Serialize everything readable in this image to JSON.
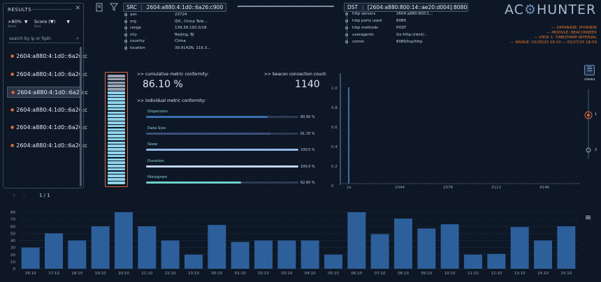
{
  "results": {
    "title": "RESULTS",
    "close": "✕",
    "filter_value": ">80%",
    "filter_sub": "Score",
    "sort_value": "Score (▼)",
    "sort_sub": "Sort",
    "search_placeholder": "search by ip or fqdn",
    "items": [
      {
        "label": "2604:a880:4:1d0::6a26:c"
      },
      {
        "label": "2604:a880:4:1d0::6a26:c"
      },
      {
        "label": "2604:a880:4:1d0::6a26:c"
      },
      {
        "label": "2604:a880:4:1d0::6a26:c"
      },
      {
        "label": "2604:a880:4:1d0::6a26:c"
      },
      {
        "label": "2604:a880:4:1d0::6a26:c"
      }
    ],
    "active_index": 2
  },
  "src": {
    "label": "SRC",
    "address": "2604:a880:4:1d0::6a26:c900",
    "fields": [
      {
        "key": "asn",
        "value": "23724"
      },
      {
        "key": "org",
        "value": "IDC, China Tele..."
      },
      {
        "key": "range",
        "value": "139.39.192.0/18"
      },
      {
        "key": "city",
        "value": "Beijing, BJ"
      },
      {
        "key": "country",
        "value": "China"
      },
      {
        "key": "location",
        "value": "39.9142N, 116.3..."
      }
    ]
  },
  "dst": {
    "label": "DST",
    "address": "[2604:a880:800:14::ae20:d004]:8080",
    "fields": [
      {
        "key": "http servers",
        "value": "2604:a880:800:1..."
      },
      {
        "key": "http ports used",
        "value": "8080"
      },
      {
        "key": "http methods",
        "value": "POST"
      },
      {
        "key": "useragents",
        "value": "Go-http-client/..."
      },
      {
        "key": "comm",
        "value": "8080/tcp/http"
      }
    ]
  },
  "logo": {
    "left": "AC",
    "gear": "⚙",
    "right": "HUNTER"
  },
  "info": [
    "— DATABASE: IPV6NEW",
    "— MODULE: BEACONSEEK",
    "— VIEW 1: TIMESTAMP INTERVAL",
    "— RANGE: 02/26/25 18:10 — 02/27/25 18:59"
  ],
  "metrics": {
    "cumulative_label": ">> cumulative metric conformity:",
    "cumulative_value": "86.10 %",
    "cumulative_fraction": 0.861,
    "beacon_label": ">> beacon connection count:",
    "beacon_value": "1140",
    "individual_label": ">> individual metric conformity:",
    "bars": [
      {
        "name": "Dispersion",
        "pct": "80.00 %",
        "value": 0.8,
        "color": "#3a6fb0"
      },
      {
        "name": "Data Size",
        "pct": "81.70 %",
        "value": 0.817,
        "color": "#3b4f7a"
      },
      {
        "name": "Skew",
        "pct": "100.0 %",
        "value": 1.0,
        "color": "#8fb8e6"
      },
      {
        "name": "Duration",
        "pct": "100.0 %",
        "value": 1.0,
        "color": "#c2d4ea"
      },
      {
        "name": "Histogram",
        "pct": "62.60 %",
        "value": 0.626,
        "color": "#6fd0c8"
      }
    ]
  },
  "scatter": {
    "y_ticks": [
      "1.0",
      "0.8",
      "0.6",
      "0.4",
      "0.2",
      "0"
    ],
    "x_ticks": [
      "1k",
      "1044",
      "2078",
      "3112",
      "4146"
    ]
  },
  "views": {
    "label": "views",
    "step1": "1",
    "step2": "2"
  },
  "pager": {
    "prev": "«",
    "prev2": "‹",
    "page": "1 / 1"
  },
  "chart_data": {
    "type": "bar",
    "categories": [
      "16:10",
      "17:10",
      "18:10",
      "19:10",
      "20:10",
      "21:10",
      "22:10",
      "23:10",
      "00:10",
      "01:10",
      "02:10",
      "03:10",
      "04:10",
      "05:10",
      "06:10",
      "07:10",
      "08:10",
      "09:10",
      "10:10",
      "11:10",
      "12:10",
      "13:10",
      "14:10",
      "15:10"
    ],
    "values": [
      30,
      50,
      40,
      60,
      80,
      60,
      40,
      20,
      62,
      38,
      40,
      40,
      40,
      20,
      80,
      49,
      71,
      57,
      63,
      20,
      21,
      59,
      40,
      60
    ],
    "y_ticks": [
      "0",
      "10",
      "20",
      "30",
      "40",
      "50",
      "60",
      "70",
      "80"
    ],
    "ylim": [
      0,
      80
    ],
    "bar_color": "#2d5f9a"
  }
}
